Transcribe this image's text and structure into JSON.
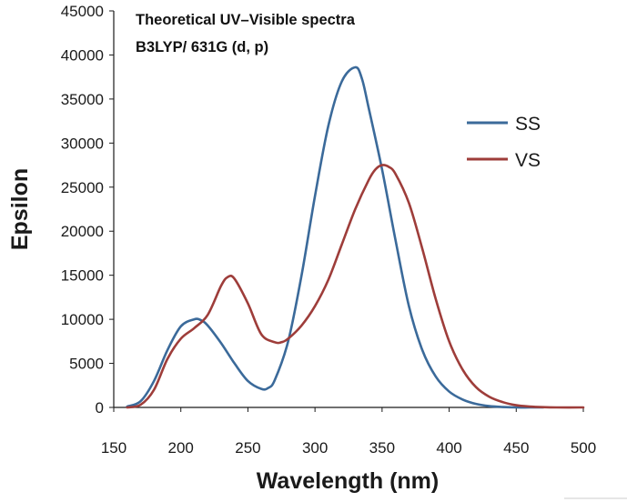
{
  "chart_data": {
    "type": "line",
    "title": "Theoretical UV–Visible spectra",
    "subtitle": "B3LYP/ 631G (d, p)",
    "xlabel": "Wavelength (nm)",
    "ylabel": "Epsilon",
    "xlim": [
      150,
      500
    ],
    "ylim": [
      0,
      45000
    ],
    "xticks": [
      150,
      200,
      250,
      300,
      350,
      400,
      450,
      500
    ],
    "yticks": [
      0,
      5000,
      10000,
      15000,
      20000,
      25000,
      30000,
      35000,
      40000,
      45000
    ],
    "legend_position": "right",
    "series": [
      {
        "name": "SS",
        "color": "#3b6a9a",
        "x": [
          160,
          170,
          180,
          190,
          200,
          210,
          215,
          220,
          230,
          240,
          250,
          260,
          265,
          270,
          280,
          290,
          300,
          310,
          320,
          330,
          335,
          340,
          350,
          360,
          370,
          380,
          390,
          400,
          410,
          420,
          430,
          440,
          450,
          460,
          470
        ],
        "y": [
          100,
          700,
          3000,
          6500,
          9200,
          10000,
          9900,
          9300,
          7300,
          5000,
          3000,
          2100,
          2200,
          3100,
          7500,
          15000,
          24000,
          32000,
          37000,
          38600,
          37300,
          34000,
          27000,
          19000,
          11500,
          6500,
          3500,
          1800,
          900,
          400,
          150,
          50,
          0,
          0,
          0
        ]
      },
      {
        "name": "VS",
        "color": "#9e3d3a",
        "x": [
          160,
          170,
          180,
          190,
          200,
          210,
          220,
          230,
          235,
          240,
          250,
          260,
          270,
          275,
          280,
          290,
          300,
          310,
          320,
          330,
          340,
          345,
          350,
          355,
          360,
          370,
          380,
          390,
          400,
          410,
          420,
          430,
          440,
          450,
          460,
          470,
          480,
          500
        ],
        "y": [
          0,
          300,
          2000,
          5500,
          7800,
          9000,
          10500,
          13800,
          14800,
          14600,
          11800,
          8300,
          7400,
          7400,
          7800,
          9300,
          11500,
          14500,
          18500,
          22500,
          25800,
          27000,
          27500,
          27300,
          26500,
          23200,
          18000,
          12300,
          7500,
          4300,
          2300,
          1200,
          600,
          250,
          100,
          30,
          0,
          0
        ]
      }
    ]
  }
}
